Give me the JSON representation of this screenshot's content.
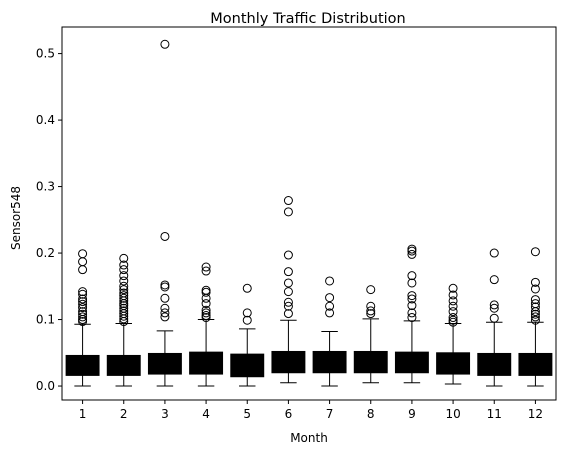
{
  "chart_data": {
    "type": "box",
    "title": "Monthly Traffic Distribution",
    "xlabel": "Month",
    "ylabel": "Sensor548",
    "ylim": [
      -0.021,
      0.54
    ],
    "yticks": [
      0.0,
      0.1,
      0.2,
      0.3,
      0.4,
      0.5
    ],
    "ytick_labels": [
      "0.0",
      "0.1",
      "0.2",
      "0.3",
      "0.4",
      "0.5"
    ],
    "categories": [
      "1",
      "2",
      "3",
      "4",
      "5",
      "6",
      "7",
      "8",
      "9",
      "10",
      "11",
      "12"
    ],
    "box_color": "#000000",
    "grid": false,
    "boxes": [
      {
        "month": "1",
        "whislo": 0.0,
        "q1": 0.016,
        "median": 0.03,
        "q3": 0.046,
        "whishi": 0.093,
        "fliers": [
          0.097,
          0.1,
          0.104,
          0.108,
          0.112,
          0.118,
          0.123,
          0.127,
          0.131,
          0.138,
          0.142,
          0.175,
          0.187,
          0.199
        ]
      },
      {
        "month": "2",
        "whislo": 0.0,
        "q1": 0.016,
        "median": 0.03,
        "q3": 0.046,
        "whishi": 0.094,
        "fliers": [
          0.097,
          0.101,
          0.105,
          0.109,
          0.113,
          0.117,
          0.121,
          0.124,
          0.128,
          0.132,
          0.136,
          0.14,
          0.145,
          0.15,
          0.158,
          0.166,
          0.175,
          0.182,
          0.192
        ]
      },
      {
        "month": "3",
        "whislo": 0.0,
        "q1": 0.018,
        "median": 0.032,
        "q3": 0.049,
        "whishi": 0.083,
        "fliers": [
          0.104,
          0.11,
          0.117,
          0.132,
          0.149,
          0.152,
          0.225,
          0.514
        ]
      },
      {
        "month": "4",
        "whislo": 0.0,
        "q1": 0.018,
        "median": 0.033,
        "q3": 0.051,
        "whishi": 0.1,
        "fliers": [
          0.103,
          0.106,
          0.11,
          0.114,
          0.124,
          0.132,
          0.141,
          0.144,
          0.173,
          0.179
        ]
      },
      {
        "month": "5",
        "whislo": 0.0,
        "q1": 0.014,
        "median": 0.03,
        "q3": 0.048,
        "whishi": 0.086,
        "fliers": [
          0.099,
          0.11,
          0.147
        ]
      },
      {
        "month": "6",
        "whislo": 0.005,
        "q1": 0.02,
        "median": 0.035,
        "q3": 0.052,
        "whishi": 0.099,
        "fliers": [
          0.109,
          0.12,
          0.126,
          0.142,
          0.155,
          0.172,
          0.197,
          0.262,
          0.279
        ]
      },
      {
        "month": "7",
        "whislo": 0.0,
        "q1": 0.02,
        "median": 0.035,
        "q3": 0.052,
        "whishi": 0.082,
        "fliers": [
          0.11,
          0.12,
          0.133,
          0.158
        ]
      },
      {
        "month": "8",
        "whislo": 0.005,
        "q1": 0.02,
        "median": 0.035,
        "q3": 0.052,
        "whishi": 0.101,
        "fliers": [
          0.109,
          0.113,
          0.12,
          0.145
        ]
      },
      {
        "month": "9",
        "whislo": 0.005,
        "q1": 0.02,
        "median": 0.034,
        "q3": 0.051,
        "whishi": 0.098,
        "fliers": [
          0.103,
          0.11,
          0.121,
          0.131,
          0.136,
          0.155,
          0.166,
          0.198,
          0.203,
          0.206
        ]
      },
      {
        "month": "10",
        "whislo": 0.003,
        "q1": 0.018,
        "median": 0.033,
        "q3": 0.05,
        "whishi": 0.094,
        "fliers": [
          0.096,
          0.099,
          0.103,
          0.112,
          0.12,
          0.128,
          0.137,
          0.147
        ]
      },
      {
        "month": "11",
        "whislo": 0.0,
        "q1": 0.016,
        "median": 0.031,
        "q3": 0.049,
        "whishi": 0.096,
        "fliers": [
          0.102,
          0.117,
          0.122,
          0.16,
          0.2
        ]
      },
      {
        "month": "12",
        "whislo": 0.0,
        "q1": 0.016,
        "median": 0.031,
        "q3": 0.049,
        "whishi": 0.096,
        "fliers": [
          0.099,
          0.104,
          0.108,
          0.112,
          0.119,
          0.124,
          0.13,
          0.146,
          0.156,
          0.202
        ]
      }
    ]
  }
}
